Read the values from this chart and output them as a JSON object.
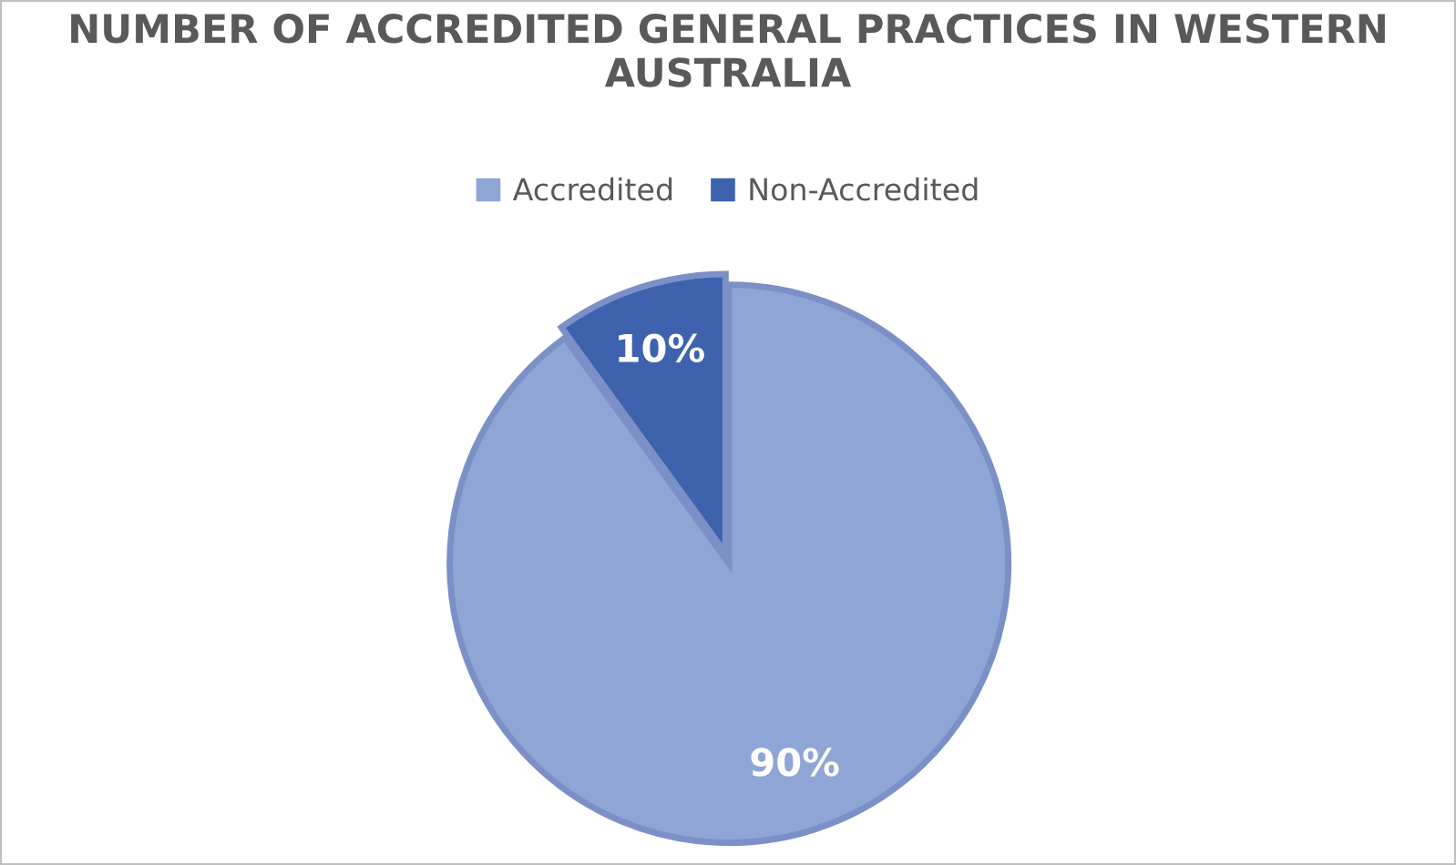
{
  "chart_data": {
    "type": "pie",
    "title": "NUMBER OF ACCREDITED GENERAL PRACTICES IN WESTERN AUSTRALIA",
    "categories": [
      "Accredited",
      "Non-Accredited"
    ],
    "values": [
      90,
      10
    ],
    "colors": [
      "#8fa5d6",
      "#3e62ad"
    ],
    "value_labels": [
      "90%",
      "10%"
    ],
    "legend": "top"
  }
}
